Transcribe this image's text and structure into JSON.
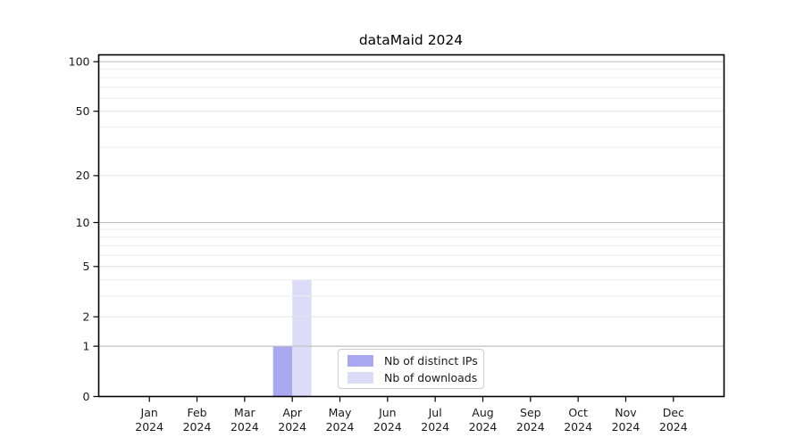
{
  "chart_data": {
    "type": "bar",
    "title": "dataMaid 2024",
    "categories": [
      "Jan 2024",
      "Feb 2024",
      "Mar 2024",
      "Apr 2024",
      "May 2024",
      "Jun 2024",
      "Jul 2024",
      "Aug 2024",
      "Sep 2024",
      "Oct 2024",
      "Nov 2024",
      "Dec 2024"
    ],
    "series": [
      {
        "name": "Nb of distinct IPs",
        "color": "#a9a9f2",
        "values": [
          0,
          0,
          0,
          1,
          0,
          0,
          0,
          0,
          0,
          0,
          0,
          0
        ]
      },
      {
        "name": "Nb of downloads",
        "color": "#dcdcf8",
        "values": [
          0,
          0,
          0,
          4,
          0,
          0,
          0,
          0,
          0,
          0,
          0,
          0
        ]
      }
    ],
    "y_scale": "log1p",
    "ylim": [
      0,
      110
    ],
    "y_ticks_labeled": [
      0,
      1,
      2,
      5,
      10,
      20,
      50,
      100
    ],
    "y_grid_major": [
      1,
      10,
      100
    ],
    "y_grid_mid": [
      2,
      5,
      20,
      50
    ],
    "y_grid_minor": [
      3,
      4,
      6,
      7,
      8,
      9,
      30,
      40,
      60,
      70,
      80,
      90
    ],
    "grid": "horizontal",
    "legend_position": "inside-bottom-center"
  },
  "colors": {
    "axis": "#000000",
    "text": "#1a1a1a",
    "major_grid": "#c3c3c3",
    "mid_grid": "#e2e2e2",
    "minor_grid": "#efefef",
    "legend_border": "#cccccc",
    "background": "#ffffff"
  }
}
